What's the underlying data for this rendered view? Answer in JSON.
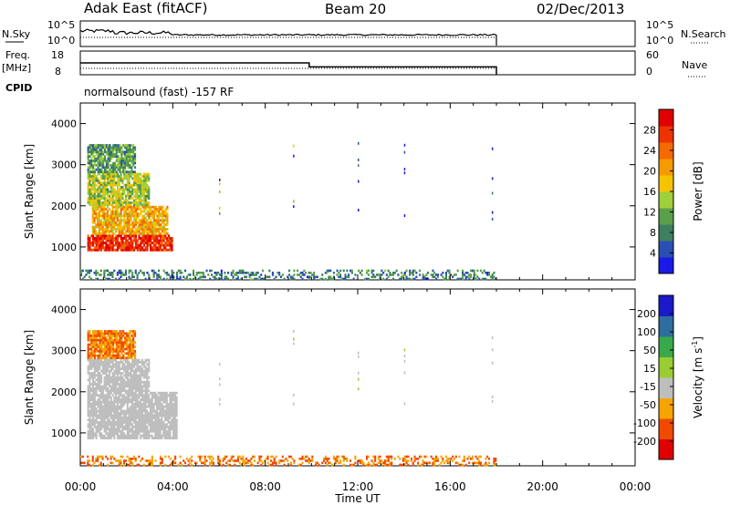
{
  "header": {
    "station": "Adak East (fitACF)",
    "beam": "Beam 20",
    "date": "02/Dec/2013"
  },
  "nsky_panel": {
    "left_label": "N.Sky",
    "right_label": "N.Search",
    "left_ticks": [
      "10^5",
      "10^0"
    ],
    "right_ticks": [
      "10^5",
      "10^0"
    ]
  },
  "freq_panel": {
    "left_label_line1": "Freq.",
    "left_label_line2": "[MHz]",
    "right_label": "Nave",
    "left_ticks": [
      "18",
      "8"
    ],
    "right_ticks": [
      "60",
      "0"
    ],
    "freq_steps": [
      {
        "t0": 0.0,
        "t1": 9.9,
        "mhz": 12.0
      },
      {
        "t0": 9.9,
        "t1": 18.0,
        "mhz": 10.0
      }
    ],
    "nave": [
      {
        "t0": 0.0,
        "t1": 18.0,
        "value": 2
      }
    ]
  },
  "cpid_panel": {
    "label": "CPID",
    "text": "normalsound (fast) -157 RF"
  },
  "colors": {
    "power_scale": [
      "#1a1ae6",
      "#2a4fb3",
      "#3d7f5e",
      "#5aa04a",
      "#9fcf3a",
      "#f5c400",
      "#f59a00",
      "#f36a00",
      "#ee3300",
      "#e00000"
    ],
    "velocity_scale": [
      "#e00000",
      "#f04a00",
      "#f5a400",
      "#bebebe",
      "#9acd32",
      "#3aa94a",
      "#2e6e9e",
      "#1a1ac8"
    ],
    "ground_scatter": "#bebebe"
  },
  "chart_data": [
    {
      "type": "heatmap",
      "panel": "power",
      "xlabel": "",
      "ylabel": "Slant Range [km]",
      "x_unit": "hours UT",
      "xlim": [
        0,
        24
      ],
      "ylim": [
        200,
        4500
      ],
      "yticks": [
        "1000",
        "2000",
        "3000",
        "4000"
      ],
      "colorbar": {
        "label": "Power [dB]",
        "range": [
          0,
          32
        ],
        "ticks": [
          "4",
          "8",
          "12",
          "16",
          "20",
          "24",
          "28"
        ]
      },
      "regions": [
        {
          "t0": 0.3,
          "t1": 4.0,
          "r0": 900,
          "r1": 1300,
          "value": 28
        },
        {
          "t0": 0.5,
          "t1": 3.8,
          "r0": 1300,
          "r1": 2000,
          "value": 20
        },
        {
          "t0": 0.3,
          "t1": 3.0,
          "r0": 2000,
          "r1": 2800,
          "value": 14
        },
        {
          "t0": 0.3,
          "t1": 2.4,
          "r0": 2800,
          "r1": 3500,
          "value": 10
        },
        {
          "t0": 0.0,
          "t1": 18.0,
          "r0": 200,
          "r1": 450,
          "value": 8
        }
      ]
    },
    {
      "type": "heatmap",
      "panel": "velocity",
      "xlabel": "Time UT",
      "ylabel": "Slant Range [km]",
      "x_unit": "hours UT",
      "xlim": [
        0,
        24
      ],
      "ylim": [
        200,
        4500
      ],
      "xticks": [
        "00:00",
        "04:00",
        "08:00",
        "12:00",
        "16:00",
        "20:00",
        "00:00"
      ],
      "yticks": [
        "1000",
        "2000",
        "3000",
        "4000"
      ],
      "colorbar": {
        "label": "Velocity [m s",
        "label_exponent": "-1",
        "label_close": "]",
        "ticks": [
          "200",
          "100",
          "50",
          "15",
          "-15",
          "-50",
          "-100",
          "-200"
        ]
      },
      "regions": [
        {
          "t0": 0.3,
          "t1": 4.2,
          "r0": 850,
          "r1": 2000,
          "value": 0
        },
        {
          "t0": 0.3,
          "t1": 3.0,
          "r0": 2000,
          "r1": 2800,
          "value": 0
        },
        {
          "t0": 0.3,
          "t1": 2.4,
          "r0": 2800,
          "r1": 3500,
          "value": -50
        },
        {
          "t0": 0.0,
          "t1": 18.0,
          "r0": 200,
          "r1": 450,
          "value": -50
        }
      ]
    }
  ]
}
